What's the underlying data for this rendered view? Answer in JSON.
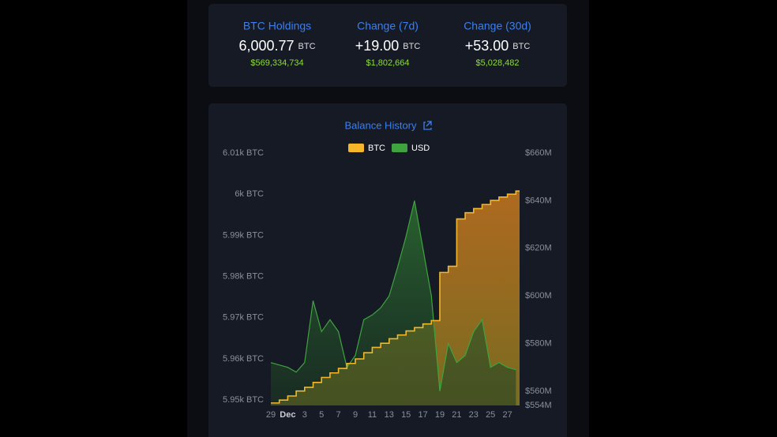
{
  "stats": [
    {
      "label": "BTC Holdings",
      "value": "6,000.77",
      "unit": "BTC",
      "usd": "$569,334,734"
    },
    {
      "label": "Change (7d)",
      "value": "+19.00",
      "unit": "BTC",
      "usd": "$1,802,664"
    },
    {
      "label": "Change (30d)",
      "value": "+53.00",
      "unit": "BTC",
      "usd": "$5,028,482"
    }
  ],
  "chart_data": {
    "type": "line",
    "title": "Balance History",
    "categories": [
      "29",
      null,
      "Dec",
      null,
      "3",
      null,
      "5",
      null,
      "7",
      null,
      "9",
      null,
      "11",
      null,
      "13",
      null,
      "15",
      null,
      "17",
      null,
      "19",
      null,
      "21",
      null,
      "23",
      null,
      "25",
      null,
      "27",
      null
    ],
    "series": [
      {
        "name": "BTC",
        "color": "#f5b72a",
        "values": [
          5949.3,
          5950.0,
          5951.0,
          5952.2,
          5953.1,
          5954.3,
          5955.5,
          5956.6,
          5957.7,
          5958.9,
          5960.0,
          5961.5,
          5962.8,
          5963.8,
          5964.9,
          5965.8,
          5966.8,
          5967.6,
          5968.5,
          5969.3,
          5981.0,
          5982.5,
          5994.0,
          5995.5,
          5996.5,
          5997.5,
          5998.5,
          5999.3,
          6000.0,
          6000.77
        ]
      },
      {
        "name": "USD",
        "color": "#3fa33f",
        "axis": "y2",
        "values": [
          572,
          571,
          570,
          568,
          572,
          598,
          585,
          590,
          585,
          570,
          575,
          590,
          592,
          595,
          600,
          612,
          625,
          640,
          620,
          600,
          560,
          580,
          572,
          575,
          585,
          590,
          570,
          572,
          570,
          569
        ]
      }
    ],
    "ylim": [
      5948.7,
      6010
    ],
    "yticks": [
      {
        "value": 5950,
        "label": "5.95k BTC"
      },
      {
        "value": 5960,
        "label": "5.96k BTC"
      },
      {
        "value": 5970,
        "label": "5.97k BTC"
      },
      {
        "value": 5980,
        "label": "5.98k BTC"
      },
      {
        "value": 5990,
        "label": "5.99k BTC"
      },
      {
        "value": 6000,
        "label": "6k BTC"
      },
      {
        "value": 6010,
        "label": "6.01k BTC"
      }
    ],
    "y2lim": [
      554,
      660
    ],
    "y2ticks": [
      {
        "value": 554,
        "label": "$554M"
      },
      {
        "value": 560,
        "label": "$560M"
      },
      {
        "value": 580,
        "label": "$580M"
      },
      {
        "value": 600,
        "label": "$600M"
      },
      {
        "value": 620,
        "label": "$620M"
      },
      {
        "value": 640,
        "label": "$640M"
      },
      {
        "value": 660,
        "label": "$660M"
      }
    ],
    "grid": false,
    "legend": "top"
  }
}
